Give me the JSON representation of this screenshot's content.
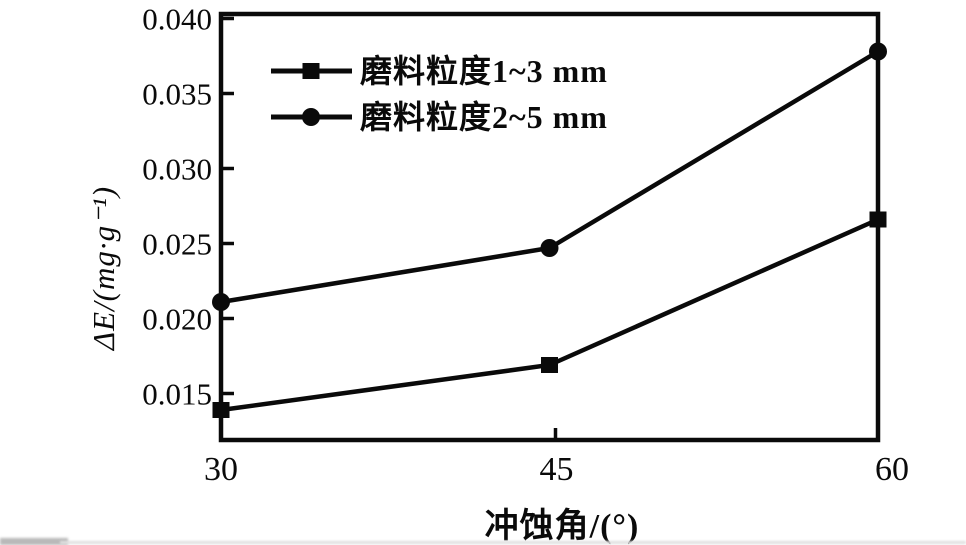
{
  "figure": {
    "background": "#ffffff",
    "ink": "#0a0a0a"
  },
  "chart_data": {
    "type": "line",
    "title": "",
    "xlabel": "冲蚀角/(°)",
    "ylabel": "ΔE/(mg·g⁻¹)",
    "x": [
      30,
      45,
      60
    ],
    "xticks": [
      30,
      45,
      60
    ],
    "xtick_labels": [
      "30",
      "45",
      "60"
    ],
    "yticks": [
      0.015,
      0.02,
      0.025,
      0.03,
      0.035,
      0.04
    ],
    "ytick_labels": [
      "0.015",
      "0.020",
      "0.025",
      "0.030",
      "0.035",
      "0.040"
    ],
    "xlim": [
      30,
      60
    ],
    "ylim": [
      0.0119,
      0.0403
    ],
    "grid": false,
    "legend_position": "inside-top-left",
    "line_color": "#0a0a0a",
    "series": [
      {
        "name": "磨料粒度1~3 mm",
        "marker": "square",
        "values": [
          0.0139,
          0.0169,
          0.0266
        ]
      },
      {
        "name": "磨料粒度2~5 mm",
        "marker": "circle",
        "values": [
          0.0211,
          0.0247,
          0.0378
        ]
      }
    ]
  }
}
